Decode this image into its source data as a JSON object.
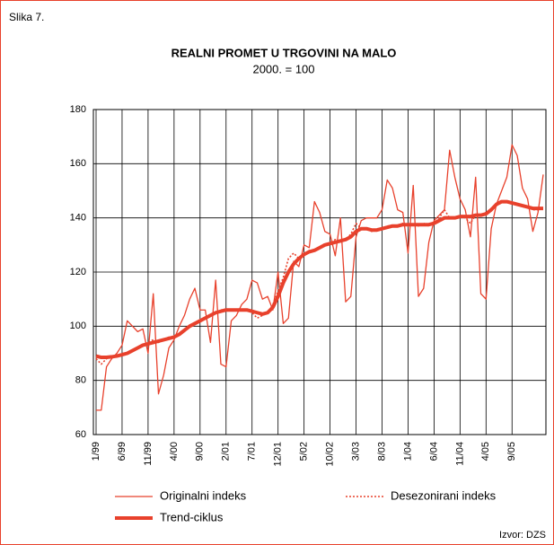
{
  "figure_label": "Slika 7.",
  "source": "Izvor: DZS",
  "chart_data": {
    "type": "line",
    "title": "REALNI PROMET U TRGOVINI NA MALO",
    "subtitle": "2000. = 100",
    "categories": [
      "1/99",
      null,
      null,
      null,
      null,
      "6/99",
      null,
      null,
      null,
      null,
      "11/99",
      null,
      null,
      null,
      null,
      "4/00",
      null,
      null,
      null,
      null,
      "9/00",
      null,
      null,
      null,
      null,
      "2/01",
      null,
      null,
      null,
      null,
      "7/01",
      null,
      null,
      null,
      null,
      "12/01",
      null,
      null,
      null,
      null,
      "5/02",
      null,
      null,
      null,
      null,
      "10/02",
      null,
      null,
      null,
      null,
      "3/03",
      null,
      null,
      null,
      null,
      "8/03",
      null,
      null,
      null,
      null,
      "1/04",
      null,
      null,
      null,
      null,
      "6/04",
      null,
      null,
      null,
      null,
      "11/04",
      null,
      null,
      null,
      null,
      "4/05",
      null,
      null,
      null,
      null,
      "9/05",
      null,
      null,
      null,
      null,
      null,
      null
    ],
    "ylim": [
      60,
      180
    ],
    "yticks": [
      60,
      80,
      100,
      120,
      140,
      160,
      180
    ],
    "grid": true,
    "series": [
      {
        "name": "Originalni indeks",
        "color": "#e8412c",
        "style": "solid",
        "values": [
          69,
          69,
          85,
          88,
          90,
          93,
          102,
          100,
          98,
          99,
          90,
          112,
          75,
          82,
          92,
          95,
          100,
          104,
          110,
          114,
          106,
          106,
          94,
          117,
          86,
          85,
          102,
          104,
          108,
          110,
          117,
          116,
          110,
          111,
          106,
          120,
          101,
          103,
          124,
          122,
          130,
          129,
          146,
          142,
          135,
          134,
          126,
          140,
          109,
          111,
          133,
          139,
          140,
          140,
          140,
          143,
          154,
          151,
          143,
          142,
          127,
          152,
          111,
          114,
          131,
          139,
          141,
          143,
          165,
          155,
          147,
          143,
          133,
          155,
          112,
          110,
          136,
          145,
          150,
          155,
          167,
          163,
          151,
          147,
          135,
          142,
          156
        ]
      },
      {
        "name": "Desezonirani indeks",
        "color": "#e8412c",
        "style": "dotted",
        "values": [
          88,
          86,
          88,
          89,
          89,
          90,
          90,
          91,
          92,
          93,
          94,
          95,
          94,
          95,
          96,
          96,
          97,
          98,
          100,
          101,
          102,
          103,
          104,
          105,
          106,
          106,
          106,
          106,
          106,
          106,
          105,
          103,
          104,
          105,
          108,
          113,
          118,
          125,
          127,
          125,
          126,
          128,
          128,
          129,
          130,
          131,
          132,
          131,
          132,
          134,
          138,
          136,
          136,
          135,
          136,
          136,
          137,
          137,
          137,
          138,
          137,
          138,
          137,
          138,
          137,
          138,
          140,
          143,
          140,
          140,
          141,
          140,
          138,
          141,
          141,
          142,
          143,
          145,
          146,
          146,
          145,
          145,
          144,
          144,
          143,
          143,
          144
        ]
      },
      {
        "name": "Trend-ciklus",
        "color": "#e8412c",
        "style": "thick",
        "values": [
          89,
          88.5,
          88.5,
          88.7,
          89,
          89.5,
          90,
          91,
          92,
          93,
          93.5,
          94,
          94.5,
          95,
          95.5,
          96,
          97,
          98.5,
          100,
          101,
          102,
          103,
          104,
          105,
          105.5,
          106,
          106,
          106,
          106,
          106,
          105.5,
          105,
          104.5,
          105,
          107,
          111,
          116,
          120,
          123,
          125,
          126.5,
          127.5,
          128,
          129,
          130,
          130.5,
          131,
          131.5,
          132,
          133,
          135,
          136,
          136,
          135.5,
          135.5,
          136,
          136.5,
          137,
          137,
          137.5,
          137.5,
          137.5,
          137.5,
          137.5,
          137.5,
          138,
          139,
          140,
          140,
          140,
          140.5,
          140.5,
          140.5,
          141,
          141,
          141.5,
          143,
          145,
          146,
          146,
          145.5,
          145,
          144.5,
          144,
          143.5,
          143.5,
          143.5
        ]
      }
    ]
  }
}
